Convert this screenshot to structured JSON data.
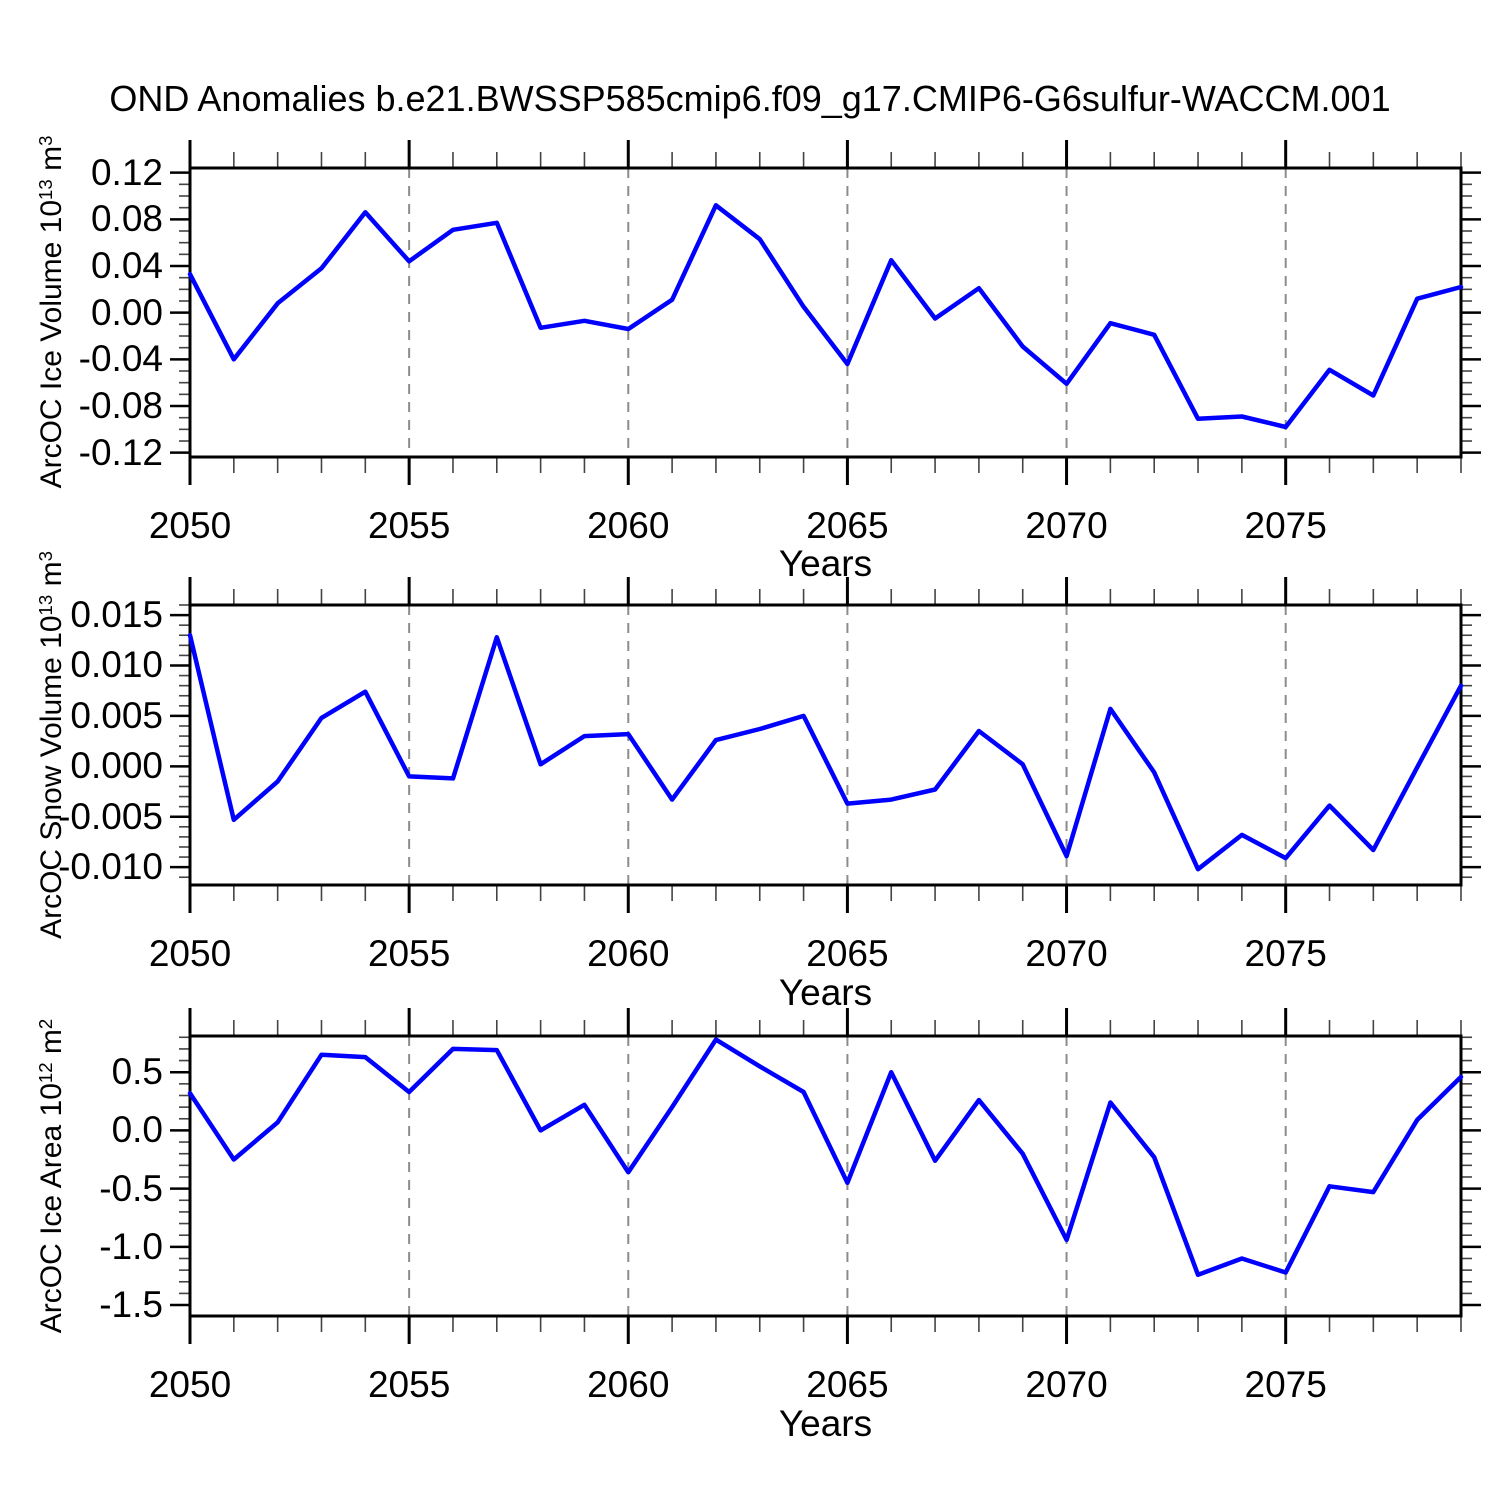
{
  "title": "OND Anomalies b.e21.BWSSP585cmip6.f09_g17.CMIP6-G6sulfur-WACCM.001",
  "colors": {
    "line": "#0000ff",
    "axis": "#000000",
    "minor_tick": "#444444",
    "grid": "#8c8c8c",
    "background": "#ffffff",
    "text": "#000000"
  },
  "x_axis": {
    "label": "Years",
    "start": 2050,
    "end": 2079,
    "major_ticks": [
      2050,
      2055,
      2060,
      2065,
      2070,
      2075
    ],
    "tick_labels": [
      "2050",
      "2055",
      "2060",
      "2065",
      "2070",
      "2075"
    ],
    "minor_step": 1,
    "gridline_years": [
      2055,
      2060,
      2065,
      2070,
      2075
    ]
  },
  "chart_data": [
    {
      "type": "line",
      "panel": "ice-volume",
      "ylabel": {
        "text": "ArcOC Ice Volume 10",
        "exp": "13",
        "unit": " m",
        "unit_exp": "3"
      },
      "xlabel": "Years",
      "ylim": [
        -0.1237,
        0.124
      ],
      "yticks": [
        0.12,
        0.08,
        0.04,
        0.0,
        -0.04,
        -0.08,
        -0.12
      ],
      "ytick_labels": [
        "0.12",
        "0.08",
        "0.04",
        "0.00",
        "-0.04",
        "-0.08",
        "-0.12"
      ],
      "yminor_step": 0.01,
      "grid": "x-dashed",
      "legend": "none",
      "x": [
        2050,
        2051,
        2052,
        2053,
        2054,
        2055,
        2056,
        2057,
        2058,
        2059,
        2060,
        2061,
        2062,
        2063,
        2064,
        2065,
        2066,
        2067,
        2068,
        2069,
        2070,
        2071,
        2072,
        2073,
        2074,
        2075,
        2076,
        2077,
        2078,
        2079
      ],
      "values": [
        0.033,
        -0.04,
        0.008,
        0.038,
        0.086,
        0.044,
        0.071,
        0.077,
        -0.013,
        -0.007,
        -0.014,
        0.011,
        0.092,
        0.063,
        0.005,
        -0.044,
        0.045,
        -0.005,
        0.021,
        -0.029,
        -0.061,
        -0.009,
        -0.019,
        -0.091,
        -0.089,
        -0.098,
        -0.049,
        -0.071,
        0.012,
        0.022
      ]
    },
    {
      "type": "line",
      "panel": "snow-volume",
      "ylabel": {
        "text": "ArcOC Snow Volume 10",
        "exp": "13",
        "unit": " m",
        "unit_exp": "3"
      },
      "xlabel": "Years",
      "ylim": [
        -0.01177,
        0.016
      ],
      "yticks": [
        0.015,
        0.01,
        0.005,
        0.0,
        -0.005,
        -0.01
      ],
      "ytick_labels": [
        "0.015",
        "0.010",
        "0.005",
        "0.000",
        "-0.005",
        "-0.010"
      ],
      "yminor_step": 0.001,
      "grid": "x-dashed",
      "legend": "none",
      "x": [
        2050,
        2051,
        2052,
        2053,
        2054,
        2055,
        2056,
        2057,
        2058,
        2059,
        2060,
        2061,
        2062,
        2063,
        2064,
        2065,
        2066,
        2067,
        2068,
        2069,
        2070,
        2071,
        2072,
        2073,
        2074,
        2075,
        2076,
        2077,
        2078,
        2079
      ],
      "values": [
        0.013,
        -0.0053,
        -0.0015,
        0.0048,
        0.0074,
        -0.001,
        -0.0012,
        0.0128,
        0.0002,
        0.003,
        0.0032,
        -0.0033,
        0.0026,
        0.0037,
        0.005,
        -0.0037,
        -0.0033,
        -0.0023,
        0.0035,
        0.0002,
        -0.0089,
        0.0057,
        -0.0006,
        -0.0102,
        -0.0068,
        -0.0091,
        -0.0039,
        -0.0083,
        -0.0001,
        0.008
      ]
    },
    {
      "type": "line",
      "panel": "ice-area",
      "ylabel": {
        "text": "ArcOC Ice Area 10",
        "exp": "12",
        "unit": " m",
        "unit_exp": "2"
      },
      "xlabel": "Years",
      "ylim": [
        -1.594,
        0.811
      ],
      "yticks": [
        0.5,
        0.0,
        -0.5,
        -1.0,
        -1.5
      ],
      "ytick_labels": [
        "0.5",
        "0.0",
        "-0.5",
        "-1.0",
        "-1.5"
      ],
      "yminor_step": 0.1,
      "grid": "x-dashed",
      "legend": "none",
      "x": [
        2050,
        2051,
        2052,
        2053,
        2054,
        2055,
        2056,
        2057,
        2058,
        2059,
        2060,
        2061,
        2062,
        2063,
        2064,
        2065,
        2066,
        2067,
        2068,
        2069,
        2070,
        2071,
        2072,
        2073,
        2074,
        2075,
        2076,
        2077,
        2078,
        2079
      ],
      "values": [
        0.32,
        -0.25,
        0.07,
        0.65,
        0.63,
        0.33,
        0.7,
        0.69,
        0.0,
        0.22,
        -0.36,
        0.2,
        0.78,
        0.55,
        0.33,
        -0.45,
        0.5,
        -0.26,
        0.26,
        -0.2,
        -0.94,
        0.24,
        -0.23,
        -1.24,
        -1.1,
        -1.22,
        -0.48,
        -0.53,
        0.09,
        0.46
      ]
    }
  ]
}
